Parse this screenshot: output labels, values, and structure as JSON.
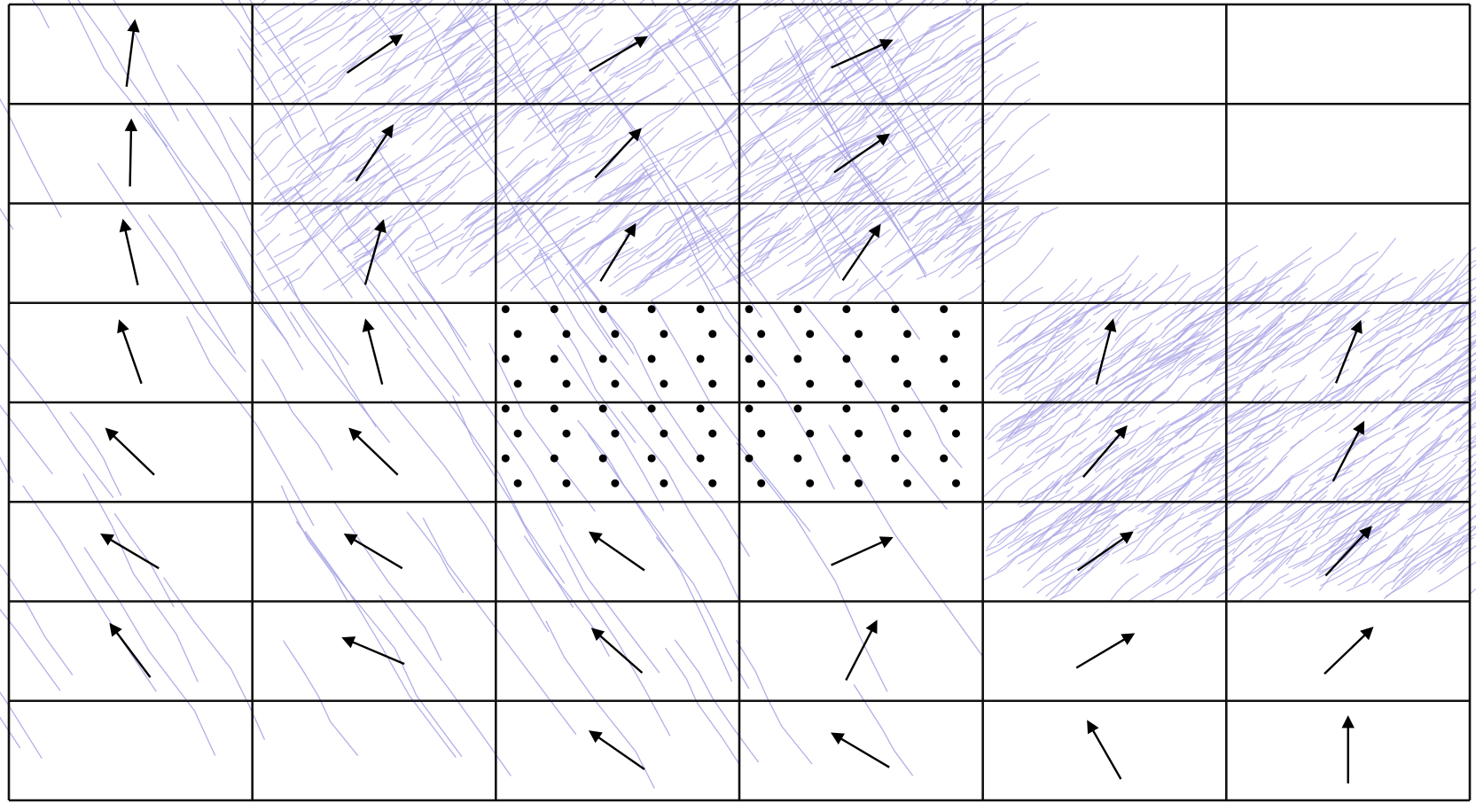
{
  "diagram": {
    "type": "vector-field-grid",
    "grid": {
      "columns": 6,
      "rows": 8
    },
    "colors": {
      "background": "#ffffff",
      "grid_line": "#111111",
      "trajectory": "#a9a6e6",
      "arrow": "#000000",
      "dot": "#000000"
    },
    "dot_region": {
      "columns": [
        2,
        3
      ],
      "rows": [
        3,
        4
      ],
      "rows_per_cell": 4,
      "dots_per_row": 5
    },
    "trajectory_regions": [
      {
        "name": "upper-dense-band",
        "columns": [
          1,
          3
        ],
        "rows": [
          0,
          2
        ],
        "drift": "up-right",
        "density": "high"
      },
      {
        "name": "right-dense-band",
        "columns": [
          4,
          5
        ],
        "rows": [
          3,
          5
        ],
        "drift": "up-right",
        "density": "high"
      },
      {
        "name": "left-sparse-flow",
        "columns": [
          0,
          3
        ],
        "rows": [
          0,
          7
        ],
        "drift": "up-left",
        "density": "low"
      }
    ],
    "arrows": [
      {
        "col": 0,
        "row": 0,
        "dx": 0.12,
        "dy": -0.95
      },
      {
        "col": 1,
        "row": 0,
        "dx": 0.82,
        "dy": -0.57
      },
      {
        "col": 2,
        "row": 0,
        "dx": 0.86,
        "dy": -0.51
      },
      {
        "col": 3,
        "row": 0,
        "dx": 0.91,
        "dy": -0.41
      },
      {
        "col": 0,
        "row": 1,
        "dx": 0.02,
        "dy": -1.0
      },
      {
        "col": 1,
        "row": 1,
        "dx": 0.55,
        "dy": -0.83
      },
      {
        "col": 2,
        "row": 1,
        "dx": 0.68,
        "dy": -0.73
      },
      {
        "col": 3,
        "row": 1,
        "dx": 0.82,
        "dy": -0.57
      },
      {
        "col": 0,
        "row": 2,
        "dx": -0.22,
        "dy": -0.97
      },
      {
        "col": 1,
        "row": 2,
        "dx": 0.27,
        "dy": -0.96
      },
      {
        "col": 2,
        "row": 2,
        "dx": 0.52,
        "dy": -0.85
      },
      {
        "col": 3,
        "row": 2,
        "dx": 0.56,
        "dy": -0.83
      },
      {
        "col": 0,
        "row": 3,
        "dx": -0.33,
        "dy": -0.94
      },
      {
        "col": 1,
        "row": 3,
        "dx": -0.25,
        "dy": -0.97
      },
      {
        "col": 4,
        "row": 3,
        "dx": 0.25,
        "dy": -0.97
      },
      {
        "col": 5,
        "row": 3,
        "dx": 0.37,
        "dy": -0.93
      },
      {
        "col": 0,
        "row": 4,
        "dx": -0.72,
        "dy": -0.69
      },
      {
        "col": 1,
        "row": 4,
        "dx": -0.72,
        "dy": -0.69
      },
      {
        "col": 4,
        "row": 4,
        "dx": 0.65,
        "dy": -0.76
      },
      {
        "col": 5,
        "row": 4,
        "dx": 0.46,
        "dy": -0.89
      },
      {
        "col": 0,
        "row": 5,
        "dx": -0.86,
        "dy": -0.51
      },
      {
        "col": 1,
        "row": 5,
        "dx": -0.86,
        "dy": -0.51
      },
      {
        "col": 2,
        "row": 5,
        "dx": -0.82,
        "dy": -0.57
      },
      {
        "col": 3,
        "row": 5,
        "dx": 0.91,
        "dy": -0.41
      },
      {
        "col": 4,
        "row": 5,
        "dx": 0.82,
        "dy": -0.57
      },
      {
        "col": 5,
        "row": 5,
        "dx": 0.68,
        "dy": -0.73
      },
      {
        "col": 0,
        "row": 6,
        "dx": -0.6,
        "dy": -0.8
      },
      {
        "col": 1,
        "row": 6,
        "dx": -0.92,
        "dy": -0.39
      },
      {
        "col": 2,
        "row": 6,
        "dx": -0.75,
        "dy": -0.66
      },
      {
        "col": 3,
        "row": 6,
        "dx": 0.46,
        "dy": -0.89
      },
      {
        "col": 4,
        "row": 6,
        "dx": 0.86,
        "dy": -0.51
      },
      {
        "col": 5,
        "row": 6,
        "dx": 0.72,
        "dy": -0.69
      },
      {
        "col": 2,
        "row": 7,
        "dx": -0.82,
        "dy": -0.57
      },
      {
        "col": 3,
        "row": 7,
        "dx": -0.86,
        "dy": -0.51
      },
      {
        "col": 4,
        "row": 7,
        "dx": -0.5,
        "dy": -0.87
      },
      {
        "col": 5,
        "row": 7,
        "dx": 0.0,
        "dy": -1.0
      }
    ]
  }
}
